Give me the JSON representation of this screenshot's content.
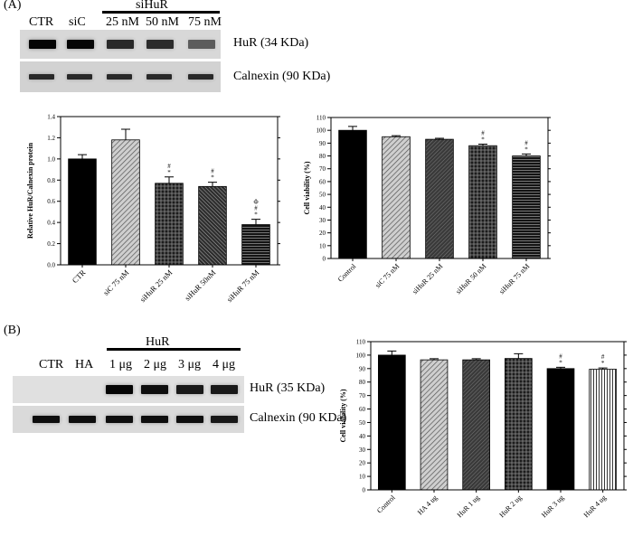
{
  "panelA": {
    "label": "(A)",
    "blot": {
      "lanes": [
        "CTR",
        "siC",
        "25 nM",
        "50 nM",
        "75 nM"
      ],
      "group_label": "siHuR",
      "bands": [
        {
          "name": "HuR (34 KDa)",
          "intensities": [
            1.0,
            1.0,
            0.8,
            0.78,
            0.5
          ]
        },
        {
          "name": "Calnexin  (90 KDa)",
          "intensities": [
            0.8,
            0.8,
            0.8,
            0.8,
            0.8
          ]
        }
      ]
    }
  },
  "panelB": {
    "label": "(B)",
    "blot": {
      "lanes": [
        "CTR",
        "HA",
        "1 μg",
        "2 μg",
        "3 μg",
        "4 μg"
      ],
      "group_label": "HuR",
      "bands": [
        {
          "name": "HuR (35 KDa)",
          "intensities": [
            0.0,
            0.0,
            1.0,
            0.95,
            0.9,
            0.9
          ]
        },
        {
          "name": "Calnexin  (90 KDa)",
          "intensities": [
            0.95,
            0.95,
            0.95,
            0.95,
            0.95,
            0.9
          ]
        }
      ]
    }
  },
  "chart_data": [
    {
      "type": "bar",
      "categories": [
        "CTR",
        "siC 75 nM",
        "siHuR 25 nM",
        "siHuR 50nM",
        "siHuR 75 nM"
      ],
      "values": [
        1.0,
        1.18,
        0.77,
        0.74,
        0.38
      ],
      "errors": [
        0.04,
        0.1,
        0.06,
        0.04,
        0.05
      ],
      "annotations": [
        "",
        "",
        "#\n*",
        "#\n*",
        "Φ\n#\n*"
      ],
      "patterns": [
        "solid",
        "diag-light",
        "grid",
        "diag-dense",
        "hlines"
      ],
      "title": "",
      "xlabel": "",
      "ylabel": "Relative HuR/Calnexin protein",
      "ylim": [
        0,
        1.4
      ],
      "yticks": [
        "0.0",
        "0.2",
        "0.4",
        "0.6",
        "0.8",
        "1.0",
        "1.2",
        "1.4"
      ]
    },
    {
      "type": "bar",
      "categories": [
        "Control",
        "siC 75 nM",
        "siHuR 25 nM",
        "siHuR 50 nM",
        "siHuR 75 nM"
      ],
      "values": [
        100,
        95,
        93,
        88,
        80
      ],
      "errors": [
        3,
        0.8,
        0.8,
        1.2,
        1.5
      ],
      "annotations": [
        "",
        "",
        "",
        "#\n*",
        "#\n*"
      ],
      "patterns": [
        "solid",
        "diag-light",
        "diag-dark",
        "grid",
        "hlines"
      ],
      "title": "",
      "xlabel": "",
      "ylabel": "Cell viability (%)",
      "ylim": [
        0,
        110
      ],
      "yticks": [
        "0",
        "10",
        "20",
        "30",
        "40",
        "50",
        "60",
        "70",
        "80",
        "90",
        "100",
        "110"
      ]
    },
    {
      "type": "bar",
      "categories": [
        "Control",
        "HA 4 ug",
        "HuR 1 ug",
        "HuR 2 ug",
        "HuR 3 ug",
        "HuR 4 ug"
      ],
      "values": [
        100,
        96.5,
        96.5,
        97.5,
        90,
        89.5
      ],
      "errors": [
        3,
        0.8,
        0.8,
        3.5,
        1,
        1
      ],
      "annotations": [
        "",
        "",
        "",
        "",
        "#\n*",
        "#\n*"
      ],
      "patterns": [
        "solid",
        "diag-light",
        "diag-dark",
        "grid",
        "solid",
        "vlines"
      ],
      "title": "",
      "xlabel": "",
      "ylabel": "Cell viability (%)",
      "ylim": [
        0,
        110
      ],
      "yticks": [
        "0",
        "10",
        "20",
        "30",
        "40",
        "50",
        "60",
        "70",
        "80",
        "90",
        "100",
        "110"
      ]
    }
  ]
}
